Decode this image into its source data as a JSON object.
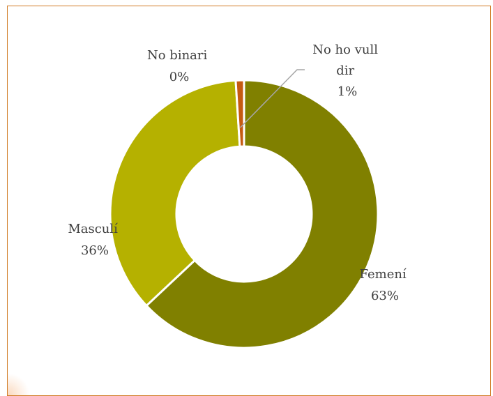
{
  "chart_data": {
    "type": "pie",
    "title": "",
    "categories": [
      "Femení",
      "Masculí",
      "No binari",
      "No ho vull dir"
    ],
    "values": [
      63,
      36,
      0,
      1
    ],
    "labels": [
      {
        "lines": [
          "Femení",
          "63%"
        ]
      },
      {
        "lines": [
          "Masculí",
          "36%"
        ]
      },
      {
        "lines": [
          "No binari",
          "0%"
        ]
      },
      {
        "lines": [
          "No ho vull",
          "dir",
          "1%"
        ]
      }
    ],
    "colors": [
      "#808000",
      "#b5b100",
      "#c9c76a",
      "#c55a11"
    ],
    "legend": "none",
    "style": "doughnut"
  },
  "theme": {
    "border_color": "#d07a22",
    "separator_color": "#ffffff",
    "leader_line_color": "#a6a6a6"
  }
}
